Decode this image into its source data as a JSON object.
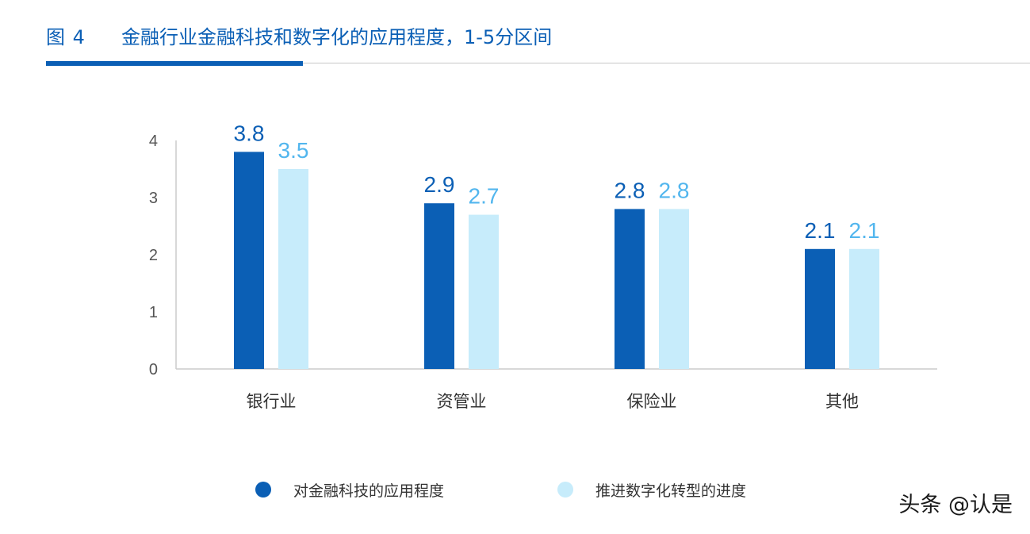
{
  "figure": {
    "number": "图 4",
    "title": "金融行业金融科技和数字化的应用程度，1-5分区间"
  },
  "watermark": "头条 @认是",
  "colors": {
    "series1": "#0b5fb5",
    "series2": "#c7ecfb",
    "series1_label": "#0b5fb5",
    "series2_label": "#52b6ee",
    "axis": "#cccccc",
    "tick_text": "#555555"
  },
  "chart_data": {
    "type": "bar",
    "categories": [
      "银行业",
      "资管业",
      "保险业",
      "其他"
    ],
    "series": [
      {
        "name": "对金融科技的应用程度",
        "values": [
          3.8,
          2.9,
          2.8,
          2.1
        ]
      },
      {
        "name": "推进数字化转型的进度",
        "values": [
          3.5,
          2.7,
          2.8,
          2.1
        ]
      }
    ],
    "value_labels": [
      [
        "3.8",
        "2.9",
        "2.8",
        "2.1"
      ],
      [
        "3.5",
        "2.7",
        "2.8",
        "2.1"
      ]
    ],
    "yticks": [
      "0",
      "1",
      "2",
      "3",
      "4"
    ],
    "ylim": [
      0,
      4
    ],
    "grid": false,
    "legend_position": "bottom"
  }
}
